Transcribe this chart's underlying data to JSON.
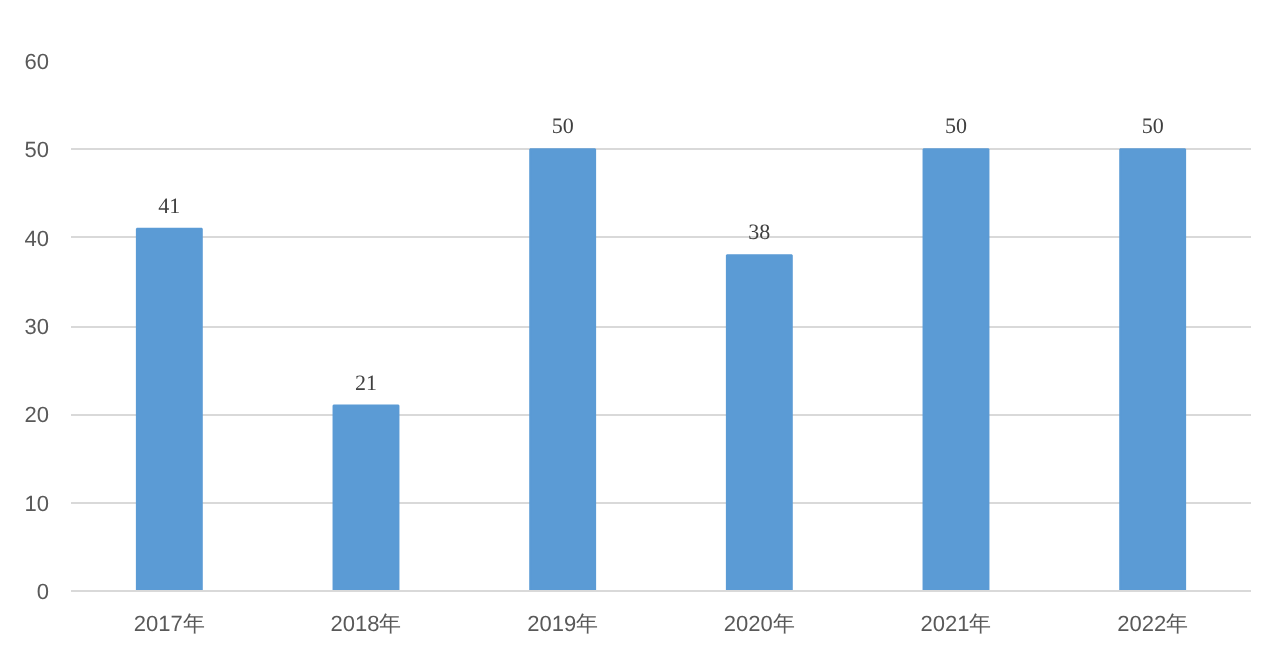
{
  "chart_data": {
    "type": "bar",
    "categories": [
      "2017年",
      "2018年",
      "2019年",
      "2020年",
      "2021年",
      "2022年"
    ],
    "values": [
      41,
      21,
      50,
      38,
      50,
      50
    ],
    "color": "#5b9bd5",
    "ylim": [
      0,
      60
    ],
    "yticks": [
      0,
      10,
      20,
      30,
      40,
      50,
      60
    ],
    "grid": "y",
    "data_labels": true
  }
}
